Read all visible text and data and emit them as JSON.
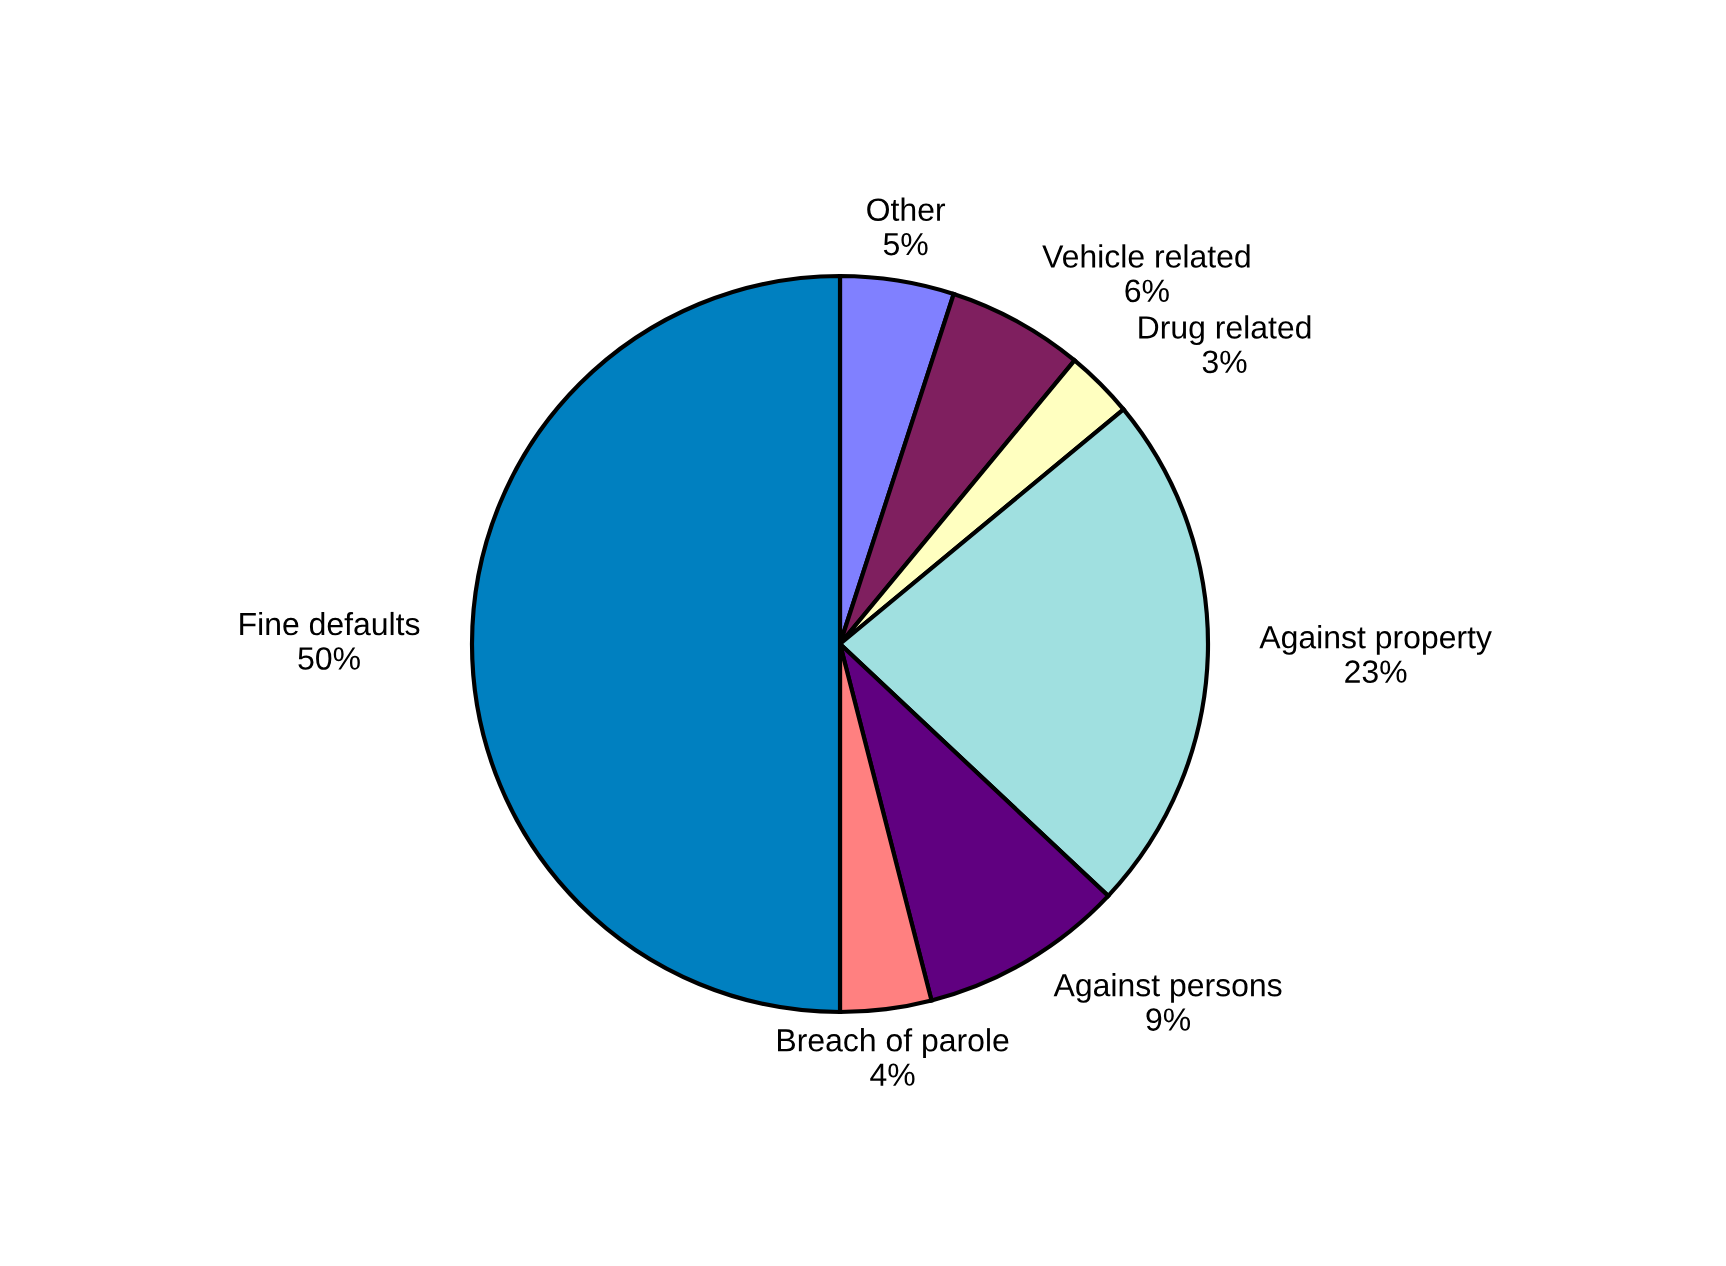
{
  "chart_data": {
    "type": "pie",
    "categories": [
      "Other",
      "Vehicle related",
      "Drug related",
      "Against property",
      "Against persons",
      "Breach of parole",
      "Fine defaults"
    ],
    "values": [
      5,
      6,
      3,
      23,
      9,
      4,
      50
    ],
    "value_labels": [
      "5%",
      "6%",
      "3%",
      "23%",
      "9%",
      "4%",
      "50%"
    ],
    "colors": [
      "#8080ff",
      "#7f1f5f",
      "#ffffc0",
      "#a0e0e0",
      "#600080",
      "#ff8080",
      "#0080c0"
    ]
  }
}
